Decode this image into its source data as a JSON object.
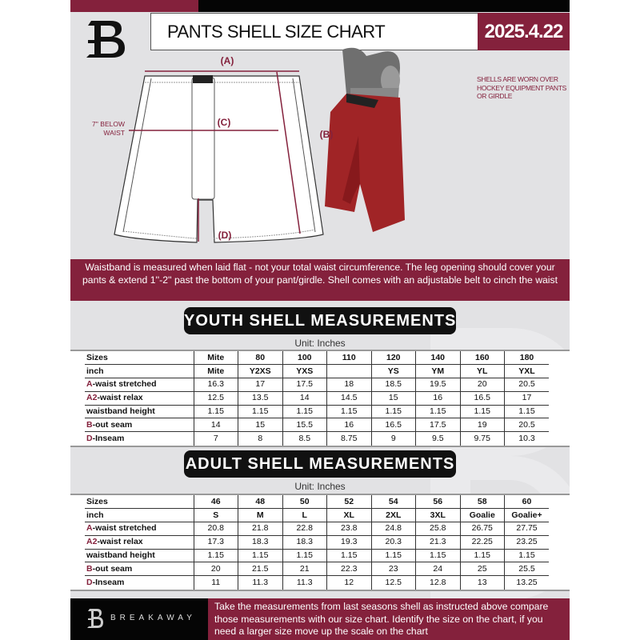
{
  "header": {
    "title": "PANTS SHELL SIZE CHART",
    "date": "2025.4.22"
  },
  "diagram": {
    "label_a": "(A)",
    "label_b": "(B)",
    "label_c": "(C)",
    "label_d": "(D)",
    "below_waist": "7'' BELOW WAIST",
    "note": "SHELLS ARE WORN OVER HOCKEY EQUIPMENT PANTS OR GIRDLE"
  },
  "banner": "Waistband is measured when laid flat - not your total waist circumference. The leg opening should cover your pants & extend 1''-2'' past the bottom of your pant/girdle. Shell comes with an adjustable belt to cinch the waist",
  "youth": {
    "heading": "YOUTH SHELL MEASUREMENTS",
    "unit": "Unit: Inches",
    "rows": [
      {
        "prefix": "",
        "label": "Sizes",
        "values": [
          "Mite",
          "80",
          "100",
          "110",
          "120",
          "140",
          "160",
          "180"
        ]
      },
      {
        "prefix": "",
        "label": "inch",
        "values": [
          "Mite",
          "Y2XS",
          "YXS",
          "",
          "YS",
          "YM",
          "YL",
          "YXL"
        ]
      },
      {
        "prefix": "A",
        "label": "-waist stretched",
        "values": [
          "16.3",
          "17",
          "17.5",
          "18",
          "18.5",
          "19.5",
          "20",
          "20.5"
        ]
      },
      {
        "prefix": "A2",
        "label": "-waist relax",
        "values": [
          "12.5",
          "13.5",
          "14",
          "14.5",
          "15",
          "16",
          "16.5",
          "17"
        ]
      },
      {
        "prefix": "",
        "label": "waistband height",
        "values": [
          "1.15",
          "1.15",
          "1.15",
          "1.15",
          "1.15",
          "1.15",
          "1.15",
          "1.15"
        ]
      },
      {
        "prefix": "B",
        "label": "-out seam",
        "values": [
          "14",
          "15",
          "15.5",
          "16",
          "16.5",
          "17.5",
          "19",
          "20.5"
        ]
      },
      {
        "prefix": "D",
        "label": "-Inseam",
        "values": [
          "7",
          "8",
          "8.5",
          "8.75",
          "9",
          "9.5",
          "9.75",
          "10.3"
        ]
      }
    ]
  },
  "adult": {
    "heading": "ADULT SHELL MEASUREMENTS",
    "unit": "Unit: Inches",
    "rows": [
      {
        "prefix": "",
        "label": "Sizes",
        "values": [
          "46",
          "48",
          "50",
          "52",
          "54",
          "56",
          "58",
          "60"
        ]
      },
      {
        "prefix": "",
        "label": "inch",
        "values": [
          "S",
          "M",
          "L",
          "XL",
          "2XL",
          "3XL",
          "Goalie",
          "Goalie+"
        ]
      },
      {
        "prefix": "A",
        "label": "-waist stretched",
        "values": [
          "20.8",
          "21.8",
          "22.8",
          "23.8",
          "24.8",
          "25.8",
          "26.75",
          "27.75"
        ]
      },
      {
        "prefix": "A2",
        "label": "-waist relax",
        "values": [
          "17.3",
          "18.3",
          "18.3",
          "19.3",
          "20.3",
          "21.3",
          "22.25",
          "23.25"
        ]
      },
      {
        "prefix": "",
        "label": "waistband height",
        "values": [
          "1.15",
          "1.15",
          "1.15",
          "1.15",
          "1.15",
          "1.15",
          "1.15",
          "1.15"
        ]
      },
      {
        "prefix": "B",
        "label": "-out seam",
        "values": [
          "20",
          "21.5",
          "21",
          "22.3",
          "23",
          "24",
          "25",
          "25.5"
        ]
      },
      {
        "prefix": "D",
        "label": "-Inseam",
        "values": [
          "11",
          "11.3",
          "11.3",
          "12",
          "12.5",
          "12.8",
          "13",
          "13.25"
        ]
      }
    ]
  },
  "footer": {
    "brand": "BREAKAWAY",
    "text": "Take the measurements from last seasons shell as instructed above compare those measurements  with our size chart. Identify the size on the chart, if you need a larger size move up the scale on the chart"
  },
  "colors": {
    "accent": "#84213c",
    "dark": "#050505",
    "background": "#e2e2e4"
  }
}
